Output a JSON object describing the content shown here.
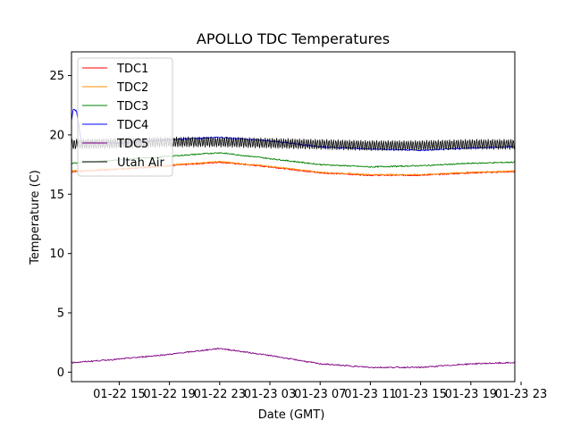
{
  "chart_data": {
    "type": "line",
    "title": "APOLLO TDC Temperatures",
    "xlabel": "Date (GMT)",
    "ylabel": "Temperature (C)",
    "xlim_hours": [
      11.2,
      46.5
    ],
    "ylim": [
      -0.8,
      27
    ],
    "x_unit": "hours since 01-22 00 GMT",
    "x_ticks": [
      {
        "value": 15,
        "label": "01-22 15"
      },
      {
        "value": 19,
        "label": "01-22 19"
      },
      {
        "value": 23,
        "label": "01-22 23"
      },
      {
        "value": 27,
        "label": "01-23 03"
      },
      {
        "value": 31,
        "label": "01-23 07"
      },
      {
        "value": 35,
        "label": "01-23 11"
      },
      {
        "value": 39,
        "label": "01-23 15"
      },
      {
        "value": 43,
        "label": "01-23 19"
      },
      {
        "value": 47,
        "label": "01-23 23"
      }
    ],
    "y_ticks": [
      {
        "value": 0,
        "label": "0"
      },
      {
        "value": 5,
        "label": "5"
      },
      {
        "value": 10,
        "label": "10"
      },
      {
        "value": 15,
        "label": "15"
      },
      {
        "value": 20,
        "label": "20"
      },
      {
        "value": 25,
        "label": "25"
      }
    ],
    "legend_position": "top-left",
    "series": [
      {
        "name": "TDC1",
        "color": "#ff0000",
        "noise": 0.05,
        "x": [
          11.2,
          15,
          19,
          23,
          27,
          31,
          35,
          39,
          43,
          46.5
        ],
        "y": [
          16.9,
          17.1,
          17.4,
          17.7,
          17.3,
          16.8,
          16.6,
          16.6,
          16.8,
          16.9
        ]
      },
      {
        "name": "TDC2",
        "color": "#ff8c00",
        "noise": 0.05,
        "x": [
          11.2,
          15,
          19,
          23,
          27,
          31,
          35,
          39,
          43,
          46.5
        ],
        "y": [
          16.95,
          17.15,
          17.45,
          17.75,
          17.35,
          16.85,
          16.65,
          16.65,
          16.85,
          16.95
        ]
      },
      {
        "name": "TDC3",
        "color": "#008000",
        "noise": 0.05,
        "x": [
          11.2,
          15,
          19,
          23,
          27,
          31,
          35,
          39,
          43,
          46.5
        ],
        "y": [
          17.6,
          17.9,
          18.2,
          18.5,
          18.0,
          17.5,
          17.3,
          17.4,
          17.6,
          17.7
        ]
      },
      {
        "name": "TDC4",
        "color": "#0000ff",
        "noise": 0.05,
        "x": [
          11.2,
          11.35,
          11.6,
          11.8,
          12.0,
          15,
          19,
          23,
          27,
          31,
          35,
          39,
          43,
          46.5
        ],
        "y": [
          21.2,
          22.2,
          22.0,
          20.6,
          19.4,
          19.3,
          19.6,
          19.8,
          19.5,
          19.0,
          18.8,
          18.7,
          18.9,
          19.0
        ]
      },
      {
        "name": "TDC5",
        "color": "#800080",
        "noise": 0.05,
        "x": [
          11.2,
          15,
          19,
          23,
          27,
          31,
          35,
          39,
          43,
          46.5
        ],
        "y": [
          0.8,
          1.1,
          1.5,
          2.0,
          1.4,
          0.7,
          0.4,
          0.4,
          0.7,
          0.8
        ]
      },
      {
        "name": "Utah Air",
        "color": "#000000",
        "oscillation": 0.45,
        "x": [
          11.2,
          15,
          19,
          23,
          27,
          31,
          35,
          39,
          43,
          46.5
        ],
        "y": [
          19.2,
          19.3,
          19.4,
          19.4,
          19.3,
          19.2,
          19.1,
          19.1,
          19.2,
          19.2
        ]
      }
    ]
  }
}
